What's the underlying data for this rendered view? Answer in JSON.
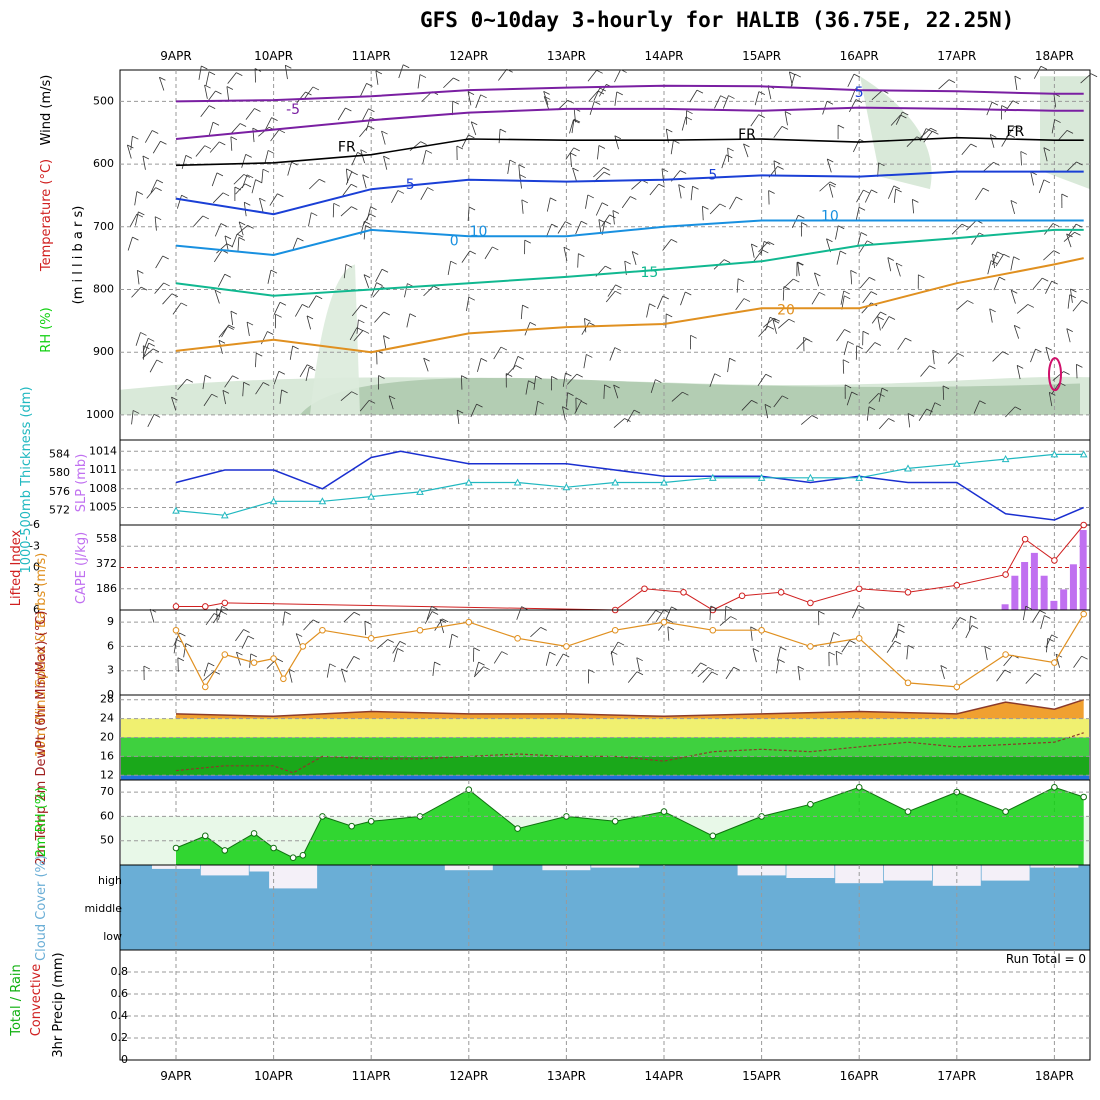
{
  "title": "GFS 0~10day 3-hourly for HALIB (36.75E, 22.25N)",
  "dates": [
    "9APR",
    "10APR",
    "11APR",
    "12APR",
    "13APR",
    "14APR",
    "15APR",
    "16APR",
    "17APR",
    "18APR"
  ],
  "colors": {
    "purple": "#7a1fa2",
    "black": "#000000",
    "blue": "#1a3fd6",
    "skyblue": "#1890e0",
    "teal": "#10b890",
    "orange": "#e09020",
    "darkorange": "#e06010",
    "magenta": "#d0106a",
    "slp": "#1a2fd0",
    "thick": "#20b8c0",
    "li": "#d02020",
    "cape": "#c070f0",
    "wind10": "#e09020",
    "temp": "#f0a030",
    "rh": "#10d010",
    "cloud": "#6aaed6",
    "precip_green": "#10b010"
  },
  "chart_data": [
    {
      "panel": "upper-air",
      "type": "line",
      "ylabel_parts": [
        "RH (%)",
        "Temperature (°C)",
        "Wind (m/s)"
      ],
      "yaxis_label": "(m i l l i b a r s)",
      "y_ticks": [
        "500",
        "600",
        "700",
        "800",
        "900",
        "1000"
      ],
      "ylim": [
        450,
        1040
      ],
      "isotherm_labels": [
        {
          "text": "-5",
          "x": 1.2,
          "p": 520
        },
        {
          "text": "5",
          "x": 7.0,
          "p": 493
        },
        {
          "text": "FR",
          "x": 1.75,
          "p": 580
        },
        {
          "text": "FR",
          "x": 5.85,
          "p": 560
        },
        {
          "text": "FR",
          "x": 8.6,
          "p": 555
        },
        {
          "text": "5",
          "x": 2.4,
          "p": 640
        },
        {
          "text": "5",
          "x": 5.5,
          "p": 625
        },
        {
          "text": "10",
          "x": 3.1,
          "p": 715
        },
        {
          "text": "10",
          "x": 6.7,
          "p": 690
        },
        {
          "text": "0",
          "x": 2.85,
          "p": 730
        },
        {
          "text": "15",
          "x": 4.85,
          "p": 780
        },
        {
          "text": "20",
          "x": 6.25,
          "p": 840
        }
      ],
      "series": [
        {
          "color": "purple",
          "x": [
            0,
            1,
            2,
            3,
            4,
            5,
            6,
            7,
            8,
            9,
            9.3
          ],
          "values": [
            500,
            498,
            492,
            482,
            478,
            475,
            476,
            482,
            484,
            488,
            488
          ]
        },
        {
          "color": "purple",
          "x": [
            0,
            1,
            2,
            3,
            4,
            5,
            6,
            7,
            8,
            9,
            9.3
          ],
          "values": [
            560,
            545,
            530,
            518,
            512,
            512,
            515,
            510,
            512,
            515,
            515
          ]
        },
        {
          "color": "black",
          "x": [
            0,
            1,
            2,
            3,
            4,
            5,
            6,
            7,
            8,
            9,
            9.3
          ],
          "values": [
            602,
            598,
            585,
            560,
            562,
            562,
            560,
            565,
            558,
            562,
            562
          ]
        },
        {
          "color": "blue",
          "x": [
            0,
            1,
            2,
            3,
            4,
            5,
            6,
            7,
            8,
            9,
            9.3
          ],
          "values": [
            655,
            680,
            640,
            625,
            628,
            625,
            618,
            620,
            612,
            612,
            612
          ]
        },
        {
          "color": "skyblue",
          "x": [
            0,
            1,
            2,
            3,
            4,
            5,
            6,
            7,
            8,
            9,
            9.3
          ],
          "values": [
            730,
            745,
            705,
            715,
            715,
            700,
            690,
            690,
            690,
            690,
            690
          ]
        },
        {
          "color": "teal",
          "x": [
            0,
            1,
            2,
            3,
            4,
            5,
            6,
            7,
            8,
            9,
            9.3
          ],
          "values": [
            790,
            810,
            800,
            790,
            780,
            768,
            755,
            730,
            718,
            705,
            705
          ]
        },
        {
          "color": "orange",
          "x": [
            0,
            1,
            2,
            3,
            4,
            5,
            6,
            7,
            8,
            9,
            9.3
          ],
          "values": [
            898,
            880,
            900,
            870,
            860,
            855,
            830,
            830,
            790,
            760,
            750
          ]
        }
      ]
    },
    {
      "panel": "slp-thickness",
      "type": "line",
      "ylabel_left": "1000-500mb Thickness (dm)",
      "ylabel_right": "SLP (mb)",
      "left_ticks": [
        "584",
        "580",
        "576",
        "572"
      ],
      "right_ticks": [
        "1014",
        "1011",
        "1008",
        "1005"
      ],
      "series": [
        {
          "name": "SLP (mb)",
          "color": "slp",
          "x": [
            0,
            0.5,
            1,
            1.5,
            2,
            2.3,
            3,
            3.5,
            4,
            4.5,
            5,
            5.5,
            6,
            6.5,
            7,
            7.5,
            8,
            8.5,
            9,
            9.3
          ],
          "values": [
            1009,
            1011,
            1011,
            1008,
            1013,
            1014,
            1012,
            1012,
            1012,
            1011,
            1010,
            1010,
            1010,
            1009,
            1010,
            1009,
            1009,
            1004,
            1003,
            1005
          ]
        },
        {
          "name": "Thickness (dm)",
          "color": "thick",
          "x": [
            0,
            0.5,
            1,
            1.5,
            2,
            2.5,
            3,
            3.5,
            4,
            4.5,
            5,
            5.5,
            6,
            6.5,
            7,
            7.5,
            8,
            8.5,
            9,
            9.3
          ],
          "values": [
            572,
            571,
            574,
            574,
            575,
            576,
            578,
            578,
            577,
            578,
            578,
            579,
            579,
            579,
            579,
            581,
            582,
            583,
            584,
            584
          ]
        }
      ]
    },
    {
      "panel": "stability",
      "type": "line",
      "ylabel_left": "Lifted Index",
      "ylabel_right": "CAPE (J/kg)",
      "li_ticks": [
        "-6",
        "-3",
        "0",
        "3",
        "6"
      ],
      "cape_ticks": [
        "558",
        "372",
        "186"
      ],
      "series": [
        {
          "name": "Lifted Index",
          "color": "li",
          "x": [
            0,
            0.3,
            0.5,
            4.5,
            4.8,
            5.2,
            5.5,
            5.8,
            6.2,
            6.5,
            7,
            7.5,
            8,
            8.5,
            8.7,
            9,
            9.3
          ],
          "values": [
            5.5,
            5.5,
            5,
            6,
            3,
            3.5,
            6,
            4,
            3.5,
            5,
            3,
            3.5,
            2.5,
            1,
            -4,
            -1,
            -6
          ]
        },
        {
          "name": "CAPE (J/kg)",
          "type": "bar",
          "color": "cape",
          "x": [
            8.5,
            8.6,
            8.7,
            8.8,
            8.9,
            9,
            9.1,
            9.2,
            9.3
          ],
          "values": [
            50,
            300,
            420,
            500,
            300,
            80,
            180,
            400,
            700
          ]
        }
      ]
    },
    {
      "panel": "10m-wind",
      "type": "line",
      "ylabel": "10m Wind Speed & Barbs (m/s)",
      "y_ticks": [
        "9",
        "6",
        "3",
        "0"
      ],
      "ylim": [
        0,
        10.5
      ],
      "series": [
        {
          "name": "10m Wind Speed",
          "color": "wind10",
          "x": [
            0,
            0.3,
            0.5,
            0.8,
            1,
            1.1,
            1.3,
            1.5,
            2,
            2.5,
            3,
            3.5,
            4,
            4.5,
            5,
            5.5,
            6,
            6.5,
            7,
            7.5,
            8,
            8.5,
            9,
            9.3
          ],
          "values": [
            8,
            1,
            5,
            4,
            4.5,
            2,
            6,
            8,
            7,
            8,
            9,
            7,
            6,
            8,
            9,
            8,
            8,
            6,
            7,
            1.5,
            1,
            5,
            4,
            10
          ]
        }
      ]
    },
    {
      "panel": "2m-temp",
      "type": "area",
      "ylabel": "2m Temp 2m DewPt (6hr Min/Max) (°C)",
      "y_ticks": [
        "28",
        "24",
        "20",
        "16",
        "12"
      ],
      "ylim": [
        11,
        29
      ],
      "series": [
        {
          "name": "2m Temp",
          "color": "temp",
          "x": [
            0,
            1,
            2,
            3,
            4,
            5,
            6,
            7,
            8,
            8.5,
            9,
            9.3
          ],
          "values": [
            25,
            24.5,
            25.5,
            25,
            25,
            24.5,
            25,
            25.5,
            25,
            27.5,
            26,
            28
          ]
        },
        {
          "name": "2m DewPt",
          "color": "li",
          "x": [
            0,
            0.5,
            1,
            1.2,
            1.5,
            2,
            2.5,
            3,
            3.5,
            4,
            4.5,
            5,
            5.5,
            6,
            6.5,
            7,
            7.5,
            8,
            8.5,
            9,
            9.3
          ],
          "values": [
            13,
            14,
            14,
            12.5,
            16,
            15.5,
            15.5,
            16,
            16.5,
            16,
            16,
            15,
            17,
            17.5,
            17,
            18,
            19,
            18,
            18.5,
            19,
            21
          ]
        }
      ]
    },
    {
      "panel": "2m-rh",
      "type": "area",
      "ylabel": "2m RH (%)",
      "y_ticks": [
        "70",
        "60",
        "50"
      ],
      "ylim": [
        40,
        75
      ],
      "series": [
        {
          "name": "2m RH",
          "color": "rh",
          "x": [
            0,
            0.3,
            0.5,
            0.8,
            1,
            1.2,
            1.3,
            1.5,
            1.8,
            2,
            2.5,
            3,
            3.5,
            4,
            4.5,
            5,
            5.5,
            6,
            6.5,
            7,
            7.5,
            8,
            8.5,
            9,
            9.3
          ],
          "values": [
            47,
            52,
            46,
            53,
            47,
            43,
            44,
            60,
            56,
            58,
            60,
            71,
            55,
            60,
            58,
            62,
            52,
            60,
            65,
            72,
            62,
            70,
            62,
            72,
            68
          ]
        }
      ]
    },
    {
      "panel": "cloud-cover",
      "type": "area",
      "ylabel": "Cloud Cover (%)",
      "levels": [
        "high",
        "middle",
        "low"
      ],
      "series": [
        {
          "name": "high",
          "color": "cloud",
          "x": [
            0,
            0.5,
            1,
            1.2,
            1.5,
            2,
            2.5,
            3,
            3.5,
            4,
            4.5,
            5,
            5.5,
            6,
            6.5,
            7,
            7.5,
            8,
            8.5,
            9,
            9.3
          ],
          "values": [
            85,
            60,
            75,
            10,
            100,
            100,
            100,
            80,
            100,
            80,
            90,
            100,
            100,
            60,
            50,
            30,
            40,
            20,
            40,
            90,
            100
          ]
        }
      ]
    },
    {
      "panel": "precip",
      "type": "bar",
      "ylabel_parts": [
        "Total / Rain",
        "Convective",
        "3hr Precip (mm)"
      ],
      "y_ticks": [
        "0.8",
        "0.6",
        "0.4",
        "0.2",
        "0"
      ],
      "ylim": [
        0,
        1
      ],
      "run_total": "Run Total = 0",
      "series": [
        {
          "name": "3hr Precip (mm)",
          "color": "precip_green",
          "x": [],
          "values": []
        }
      ]
    }
  ]
}
